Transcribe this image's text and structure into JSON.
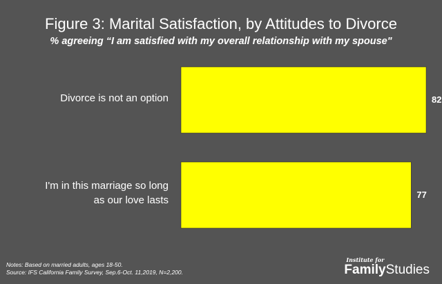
{
  "chart_data": {
    "type": "bar",
    "orientation": "horizontal",
    "title": "Figure 3: Marital Satisfaction, by Attitudes to Divorce",
    "subtitle": "% agreeing “I am satisfied with my overall relationship with my spouse\"",
    "categories": [
      [
        "Divorce is not an option"
      ],
      [
        "I'm in this marriage so long",
        "as our love lasts"
      ]
    ],
    "values": [
      82,
      77
    ],
    "xlim": [
      0,
      100
    ],
    "bar_color": "#ffff00",
    "background_color": "#545454",
    "grid": false,
    "legend": "none"
  },
  "notes": [
    "Notes: Based on married adults, ages 18-50.",
    "Source: IFS California Family Survey, Sep.6-Oct. 11,2019, N=2,200."
  ],
  "logo": {
    "top": "Institute for",
    "main_bold": "Family",
    "main_regular": "Studies"
  }
}
